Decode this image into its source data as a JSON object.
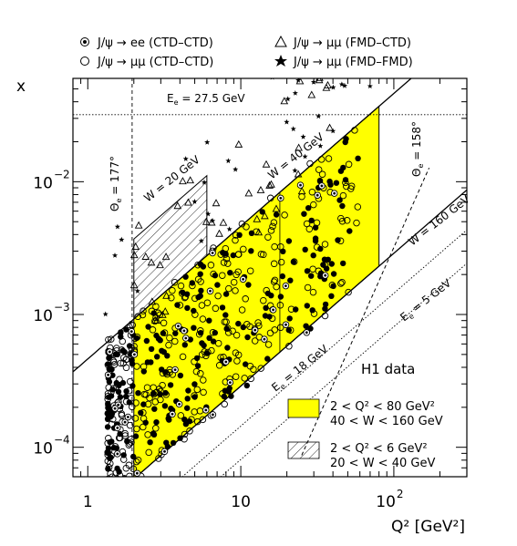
{
  "chart_data": {
    "type": "scatter",
    "xlabel": "Q² [GeV²]",
    "ylabel": "x",
    "x_scale": "log",
    "y_scale": "log",
    "xlim": [
      0.8,
      300
    ],
    "ylim": [
      6e-05,
      0.06
    ],
    "x_ticks": [
      {
        "value": 1,
        "label": "1"
      },
      {
        "value": 10,
        "label": "10"
      },
      {
        "value": 100,
        "label": "10",
        "exp": "2"
      }
    ],
    "y_ticks": [
      {
        "value": 0.0001,
        "label": "10",
        "exp": "−4"
      },
      {
        "value": 0.001,
        "label": "10",
        "exp": "−3"
      },
      {
        "value": 0.01,
        "label": "10",
        "exp": "−2"
      }
    ],
    "legend_top": [
      {
        "marker": "dotted-circle",
        "text": "J/ψ → ee (CTD–CTD)"
      },
      {
        "marker": "triangle",
        "text": "J/ψ → μμ (FMD–CTD)"
      },
      {
        "marker": "open-circle",
        "text": "J/ψ → μμ (CTD–CTD)"
      },
      {
        "marker": "star",
        "text": "J/ψ → μμ (FMD–FMD)"
      }
    ],
    "legend_boxes": [
      {
        "line1": "2 < Q² < 80 GeV²",
        "line2": "40 < W < 160 GeV",
        "fill": "#ffff00"
      },
      {
        "line1": "2 < Q² < 6 GeV²",
        "line2": "20 < W < 40 GeV",
        "fill": "hatched"
      }
    ],
    "colors": {
      "yellow_region": "#ffff00",
      "points": "#000000"
    },
    "annotations": {
      "energy": "E",
      "energy_sub": "e",
      "energy_value": " = 27.5 GeV",
      "theta_177": "Θ",
      "theta_177_sub": "e",
      "theta_177_value": " = 177°",
      "theta_158": "Θ",
      "theta_158_sub": "e",
      "theta_158_value": " = 158°",
      "w20": "W = 20 GeV",
      "w40": "W = 40 GeV",
      "w160": "W = 160 GeV",
      "e18": "E",
      "e18_sub": "e",
      "e18_value": " = 18 GeV",
      "e5": "E",
      "e5_sub": "e",
      "e5_value": " = 5 GeV",
      "h1": "H1 data"
    },
    "point_density": {
      "filled": 260,
      "open": 320,
      "dotted": 40,
      "triangles": 45,
      "stars": 38
    }
  }
}
